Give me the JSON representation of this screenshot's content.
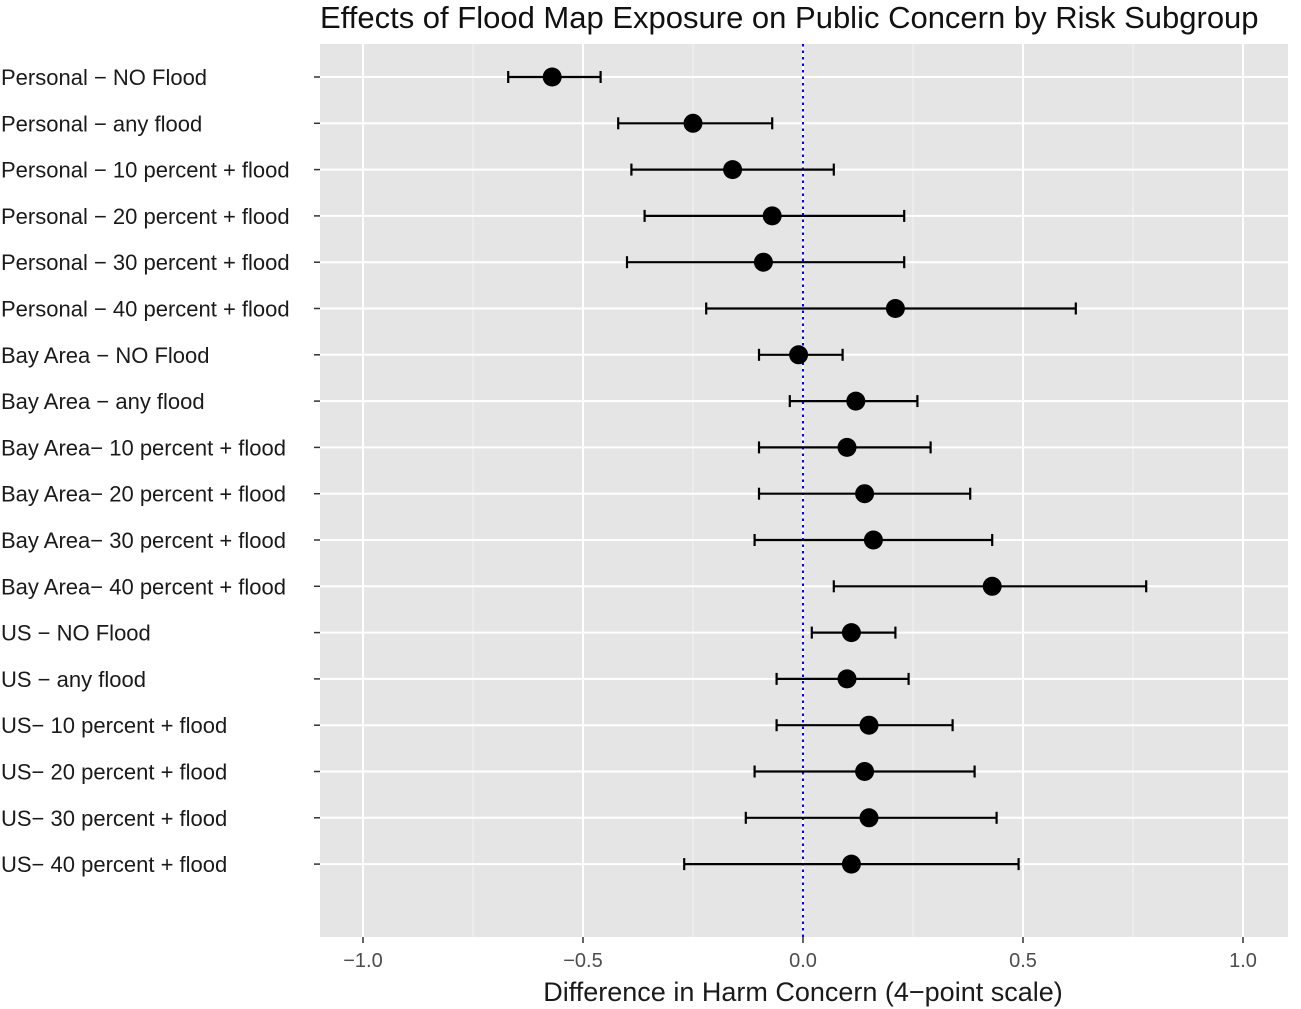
{
  "chart_data": {
    "type": "scatter",
    "subtype": "dot-and-whisker",
    "title": "Effects of Flood Map Exposure on Public Concern by Risk Subgroup",
    "xlabel": "Difference in Harm Concern (4−point scale)",
    "ylabel": "",
    "xlim": [
      -1.1,
      1.1
    ],
    "x_major_ticks": [
      -1.0,
      -0.5,
      0.0,
      0.5,
      1.0
    ],
    "x_tick_labels": [
      "−1.0",
      "−0.5",
      "0.0",
      "0.5",
      "1.0"
    ],
    "x_minor_ticks": [
      -0.75,
      -0.25,
      0.25,
      0.75
    ],
    "reference_line": {
      "x": 0,
      "style": "dotted",
      "color": "#0000ff"
    },
    "grid": true,
    "legend": "none",
    "categories": [
      "Personal − NO Flood",
      "Personal − any flood",
      "Personal − 10 percent + flood",
      "Personal − 20 percent + flood",
      "Personal − 30 percent + flood",
      "Personal − 40 percent + flood",
      "Bay Area − NO Flood",
      "Bay Area − any flood",
      "Bay Area− 10 percent + flood",
      "Bay Area− 20 percent + flood",
      "Bay Area− 30 percent + flood",
      "Bay Area− 40 percent + flood",
      "US − NO Flood",
      "US − any flood",
      "US− 10 percent + flood",
      "US− 20 percent + flood",
      "US− 30 percent + flood",
      "US− 40 percent + flood"
    ],
    "estimates": [
      -0.57,
      -0.25,
      -0.16,
      -0.07,
      -0.09,
      0.21,
      -0.01,
      0.12,
      0.1,
      0.14,
      0.16,
      0.43,
      0.11,
      0.1,
      0.15,
      0.14,
      0.15,
      0.11
    ],
    "lower": [
      -0.67,
      -0.42,
      -0.39,
      -0.36,
      -0.4,
      -0.22,
      -0.1,
      -0.03,
      -0.1,
      -0.1,
      -0.11,
      0.07,
      0.02,
      -0.06,
      -0.06,
      -0.11,
      -0.13,
      -0.27
    ],
    "upper": [
      -0.46,
      -0.07,
      0.07,
      0.23,
      0.23,
      0.62,
      0.09,
      0.26,
      0.29,
      0.38,
      0.43,
      0.78,
      0.21,
      0.24,
      0.34,
      0.39,
      0.44,
      0.49
    ]
  }
}
